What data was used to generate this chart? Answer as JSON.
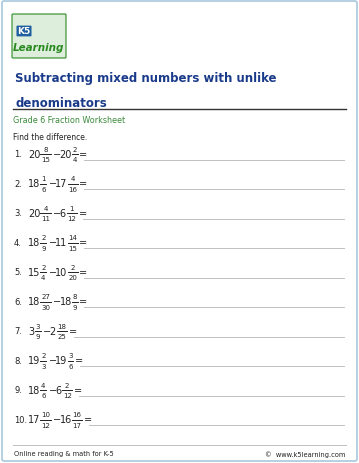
{
  "title_line1": "Subtracting mixed numbers with unlike",
  "title_line2": "denominators",
  "subtitle": "Grade 6 Fraction Worksheet",
  "instruction": "Find the difference.",
  "problems": [
    {
      "num": "1.",
      "w1": "20",
      "n1": "8",
      "d1": "15",
      "w2": "20",
      "n2": "2",
      "d2": "4"
    },
    {
      "num": "2.",
      "w1": "18",
      "n1": "1",
      "d1": "6",
      "w2": "17",
      "n2": "4",
      "d2": "16"
    },
    {
      "num": "3.",
      "w1": "20",
      "n1": "4",
      "d1": "11",
      "w2": "6",
      "n2": "1",
      "d2": "12"
    },
    {
      "num": "4.",
      "w1": "18",
      "n1": "2",
      "d1": "9",
      "w2": "11",
      "n2": "14",
      "d2": "15"
    },
    {
      "num": "5.",
      "w1": "15",
      "n1": "2",
      "d1": "4",
      "w2": "10",
      "n2": "2",
      "d2": "20"
    },
    {
      "num": "6.",
      "w1": "18",
      "n1": "27",
      "d1": "30",
      "w2": "18",
      "n2": "8",
      "d2": "9"
    },
    {
      "num": "7.",
      "w1": "3",
      "n1": "3",
      "d1": "9",
      "w2": "2",
      "n2": "18",
      "d2": "25"
    },
    {
      "num": "8.",
      "w1": "19",
      "n1": "2",
      "d1": "3",
      "w2": "19",
      "n2": "3",
      "d2": "6"
    },
    {
      "num": "9.",
      "w1": "18",
      "n1": "4",
      "d1": "6",
      "w2": "6",
      "n2": "2",
      "d2": "12"
    },
    {
      "num": "10.",
      "w1": "17",
      "n1": "10",
      "d1": "12",
      "w2": "16",
      "n2": "16",
      "d2": "17"
    }
  ],
  "footer_left": "Online reading & math for K-5",
  "footer_right": "©  www.k5learning.com",
  "border_color": "#a8c8dc",
  "title_color": "#1a3a8a",
  "subtitle_color": "#3a8a3a",
  "body_color": "#222222",
  "line_color": "#c0c0c0",
  "header_line_color": "#333333",
  "bg_color": "#ffffff",
  "logo_green": "#2a8a20",
  "logo_box_bg": "#ddeedd"
}
